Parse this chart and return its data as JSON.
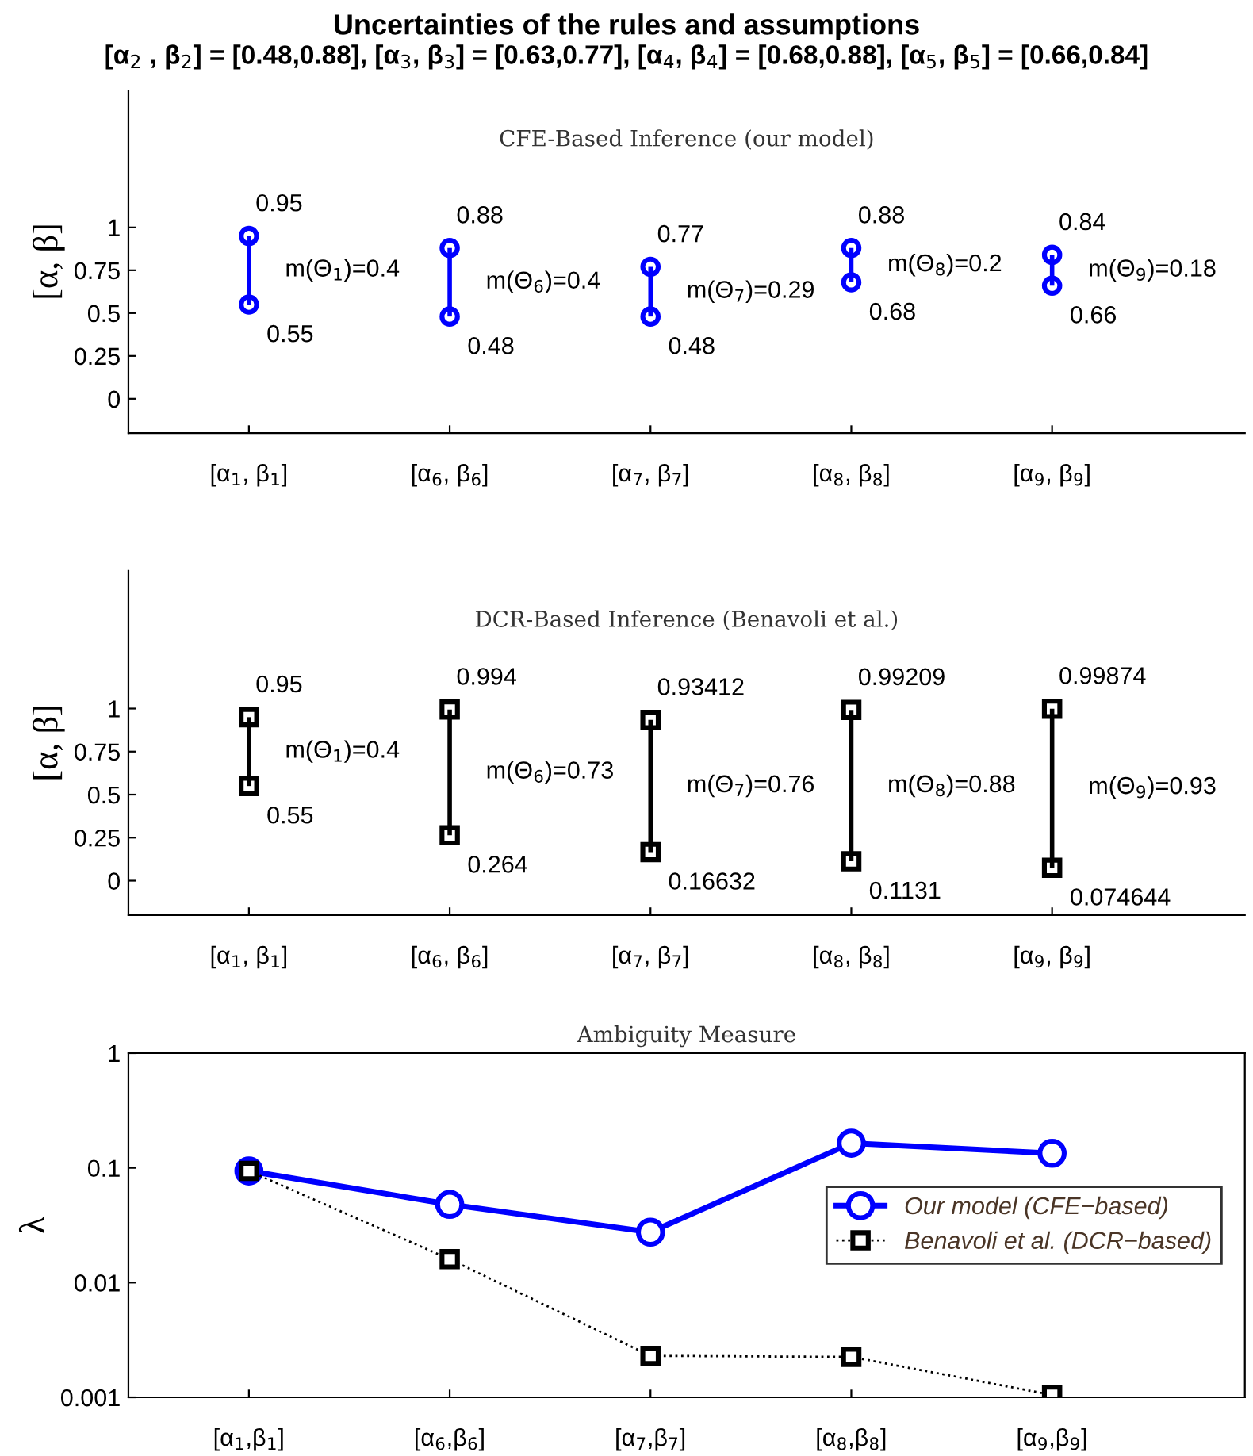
{
  "chart_data": [
    {
      "type": "bar",
      "title": "Uncertainties of the rules and assumptions",
      "subtitle": "[α$_{2}$ , β$_{2}$] = [0.48,0.88], [α$_{3}$, β$_{3}$] = [0.63,0.77], [α$_{4}$, β$_{4}$] = [0.68,0.88], [α$_{5}$, β$_{5}$] = [0.66,0.84]",
      "ylabel": "[α, β]",
      "categories": [
        "[α$_{1}$, β$_{1}$]",
        "[α$_{6}$, β$_{6}$]",
        "[α$_{7}$, β$_{7}$]",
        "[α$_{8}$, β$_{8}$]",
        "[α$_{9}$, β$_{9}$]"
      ],
      "base": [
        0.55,
        0.48,
        0.48,
        0.68,
        0.66
      ],
      "values": [
        0.4,
        0.4,
        0.29,
        0.2,
        0.18
      ],
      "color": "#0000ff",
      "marker": "circle",
      "ylim": [
        -0.2,
        1.8
      ],
      "yticks": [
        0,
        0.25,
        0.5,
        0.75,
        1
      ],
      "annotations": [
        "CFE-Based Inference (our model)",
        {
          "text": "0.95",
          "x": "[α$_{1}$, β$_{1}$]",
          "y": 0.95
        },
        {
          "text": "0.55",
          "x": "[α$_{1}$, β$_{1}$]",
          "y": 0.55
        },
        {
          "text": "0.88",
          "x": "[α$_{6}$, β$_{6}$]",
          "y": 0.88
        },
        {
          "text": "0.48",
          "x": "[α$_{6}$, β$_{6}$]",
          "y": 0.48
        },
        {
          "text": "0.77",
          "x": "[α$_{7}$, β$_{7}$]",
          "y": 0.77
        },
        {
          "text": "0.48",
          "x": "[α$_{7}$, β$_{7}$]",
          "y": 0.48
        },
        {
          "text": "0.88",
          "x": "[α$_{8}$, β$_{8}$]",
          "y": 0.88
        },
        {
          "text": "0.68",
          "x": "[α$_{8}$, β$_{8}$]",
          "y": 0.68
        },
        {
          "text": "0.84",
          "x": "[α$_{9}$, β$_{9}$]",
          "y": 0.84
        },
        {
          "text": "0.66",
          "x": "[α$_{9}$, β$_{9}$]",
          "y": 0.66
        },
        {
          "text": "m(Θ$_{1}$)=0.4",
          "x": "[α$_{1}$, β$_{1}$]",
          "y": 0.75
        },
        {
          "text": "m(Θ$_{6}$)=0.4",
          "x": "[α$_{6}$, β$_{6}$]",
          "y": 0.68
        },
        {
          "text": "m(Θ$_{7}$)=0.29",
          "x": "[α$_{7}$, β$_{7}$]",
          "y": 0.625
        },
        {
          "text": "m(Θ$_{8}$)=0.2",
          "x": "[α$_{8}$, β$_{8}$]",
          "y": 0.78
        },
        {
          "text": "m(Θ$_{9}$)=0.18",
          "x": "[α$_{9}$, β$_{9}$]",
          "y": 0.75
        }
      ]
    },
    {
      "type": "bar",
      "title": "DCR-Based Inference (Benavoli et al.)",
      "ylabel": "[α, β]",
      "categories": [
        "[α$_{1}$, β$_{1}$]",
        "[α$_{6}$, β$_{6}$]",
        "[α$_{7}$, β$_{7}$]",
        "[α$_{8}$, β$_{8}$]",
        "[α$_{9}$, β$_{9}$]"
      ],
      "base": [
        0.55,
        0.264,
        0.16632,
        0.1131,
        0.074644
      ],
      "values": [
        0.4,
        0.73,
        0.768,
        0.879,
        0.924
      ],
      "color": "#000000",
      "marker": "square",
      "ylim": [
        -0.2,
        1.8
      ],
      "yticks": [
        0,
        0.25,
        0.5,
        0.75,
        1
      ],
      "annotations": [
        {
          "text": "0.95",
          "x": "[α$_{1}$, β$_{1}$]",
          "y": 0.95
        },
        {
          "text": "0.55",
          "x": "[α$_{1}$, β$_{1}$]",
          "y": 0.55
        },
        {
          "text": "0.994",
          "x": "[α$_{6}$, β$_{6}$]",
          "y": 0.994
        },
        {
          "text": "0.264",
          "x": "[α$_{6}$, β$_{6}$]",
          "y": 0.264
        },
        {
          "text": "0.93412",
          "x": "[α$_{7}$, β$_{7}$]",
          "y": 0.93412
        },
        {
          "text": "0.16632",
          "x": "[α$_{7}$, β$_{7}$]",
          "y": 0.16632
        },
        {
          "text": "0.99209",
          "x": "[α$_{8}$, β$_{8}$]",
          "y": 0.99209
        },
        {
          "text": "0.1131",
          "x": "[α$_{8}$, β$_{8}$]",
          "y": 0.1131
        },
        {
          "text": "0.99874",
          "x": "[α$_{9}$, β$_{9}$]",
          "y": 0.99874
        },
        {
          "text": "0.074644",
          "x": "[α$_{9}$, β$_{9}$]",
          "y": 0.074644
        },
        {
          "text": "m(Θ$_{1}$)=0.4",
          "x": "[α$_{1}$, β$_{1}$]",
          "y": 0.75
        },
        {
          "text": "m(Θ$_{6}$)=0.73",
          "x": "[α$_{6}$, β$_{6}$]",
          "y": 0.63
        },
        {
          "text": "m(Θ$_{7}$)=0.76",
          "x": "[α$_{7}$, β$_{7}$]",
          "y": 0.55
        },
        {
          "text": "m(Θ$_{8}$)=0.88",
          "x": "[α$_{8}$, β$_{8}$]",
          "y": 0.55
        },
        {
          "text": "m(Θ$_{9}$)=0.93",
          "x": "[α$_{9}$, β$_{9}$]",
          "y": 0.54
        }
      ]
    },
    {
      "type": "line",
      "title": "Ambiguity Measure",
      "ylabel": "λ",
      "log": "y",
      "categories": [
        "[α$_{1}$,β$_{1}$]",
        "[α$_{6}$,β$_{6}$]",
        "[α$_{7}$,β$_{7}$]",
        "[α$_{8}$,β$_{8}$]",
        "[α$_{9}$,β$_{9}$]"
      ],
      "series": [
        {
          "name": "Our model (CFE−based)",
          "color": "#0000ff",
          "marker": "circle",
          "line_style": "solid",
          "values": [
            0.094,
            0.048,
            0.0275,
            0.164,
            0.134
          ]
        },
        {
          "name": "Benavoli et al. (DCR−based)",
          "color": "#000000",
          "marker": "square",
          "line_style": "dotted",
          "values": [
            0.094,
            0.016,
            0.0023,
            0.00225,
            0.00105
          ]
        }
      ],
      "ylim": [
        0.001,
        1
      ],
      "yticks": [
        0.001,
        0.01,
        0.1,
        1
      ],
      "legend": "right"
    }
  ]
}
